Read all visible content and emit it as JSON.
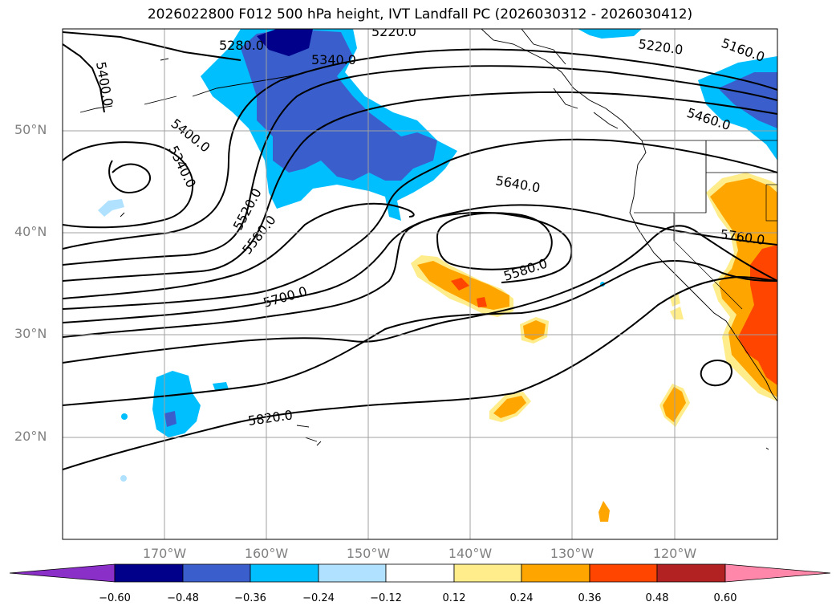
{
  "title": "2026022800 F012 500 hPa height, IVT Landfall PC (2026030312 - 2026030412)",
  "lat_labels": [
    "50°N",
    "40°N",
    "30°N",
    "20°N"
  ],
  "lon_labels": [
    "170°W",
    "160°W",
    "150°W",
    "140°W",
    "130°W",
    "120°W"
  ],
  "contour_labels": [
    "5280.0",
    "5220.0",
    "5340.0",
    "5220.0",
    "5160.0",
    "5400.0",
    "5400.0",
    "5340.0",
    "5460.0",
    "5520.0",
    "5580.0",
    "5640.0",
    "5760.0",
    "5580.0",
    "5700.0",
    "5820.0"
  ],
  "colorbar": {
    "ticks": [
      "−0.60",
      "−0.48",
      "−0.36",
      "−0.24",
      "−0.12",
      "0.12",
      "0.24",
      "0.36",
      "0.48",
      "0.60"
    ],
    "colors": [
      "#8b2fc9",
      "#00008b",
      "#3a5fcd",
      "#00bfff",
      "#b0e2ff",
      "#ffffff",
      "#ffec8b",
      "#ffa500",
      "#ff4500",
      "#b22222",
      "#ff88aa"
    ]
  }
}
